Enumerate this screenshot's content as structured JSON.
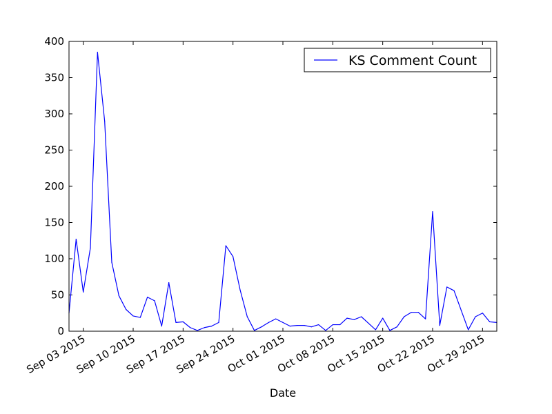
{
  "chart_data": {
    "type": "line",
    "title": "",
    "xlabel": "Date",
    "ylabel": "",
    "ylim": [
      0,
      400
    ],
    "xlim": [
      "2015-09-01",
      "2015-10-31"
    ],
    "yticks": [
      0,
      50,
      100,
      150,
      200,
      250,
      300,
      350,
      400
    ],
    "xticks": [
      {
        "date": "2015-09-03",
        "label": "Sep 03 2015"
      },
      {
        "date": "2015-09-10",
        "label": "Sep 10 2015"
      },
      {
        "date": "2015-09-17",
        "label": "Sep 17 2015"
      },
      {
        "date": "2015-09-24",
        "label": "Sep 24 2015"
      },
      {
        "date": "2015-10-01",
        "label": "Oct 01 2015"
      },
      {
        "date": "2015-10-08",
        "label": "Oct 08 2015"
      },
      {
        "date": "2015-10-15",
        "label": "Oct 15 2015"
      },
      {
        "date": "2015-10-22",
        "label": "Oct 22 2015"
      },
      {
        "date": "2015-10-29",
        "label": "Oct 29 2015"
      }
    ],
    "grid": false,
    "legend_position": "top-right",
    "series": [
      {
        "name": "KS Comment Count",
        "color": "#0000ff",
        "x": [
          "2015-09-01",
          "2015-09-02",
          "2015-09-03",
          "2015-09-04",
          "2015-09-05",
          "2015-09-06",
          "2015-09-07",
          "2015-09-08",
          "2015-09-09",
          "2015-09-10",
          "2015-09-11",
          "2015-09-12",
          "2015-09-13",
          "2015-09-14",
          "2015-09-15",
          "2015-09-16",
          "2015-09-17",
          "2015-09-18",
          "2015-09-19",
          "2015-09-20",
          "2015-09-21",
          "2015-09-22",
          "2015-09-23",
          "2015-09-24",
          "2015-09-25",
          "2015-09-26",
          "2015-09-27",
          "2015-09-28",
          "2015-09-29",
          "2015-09-30",
          "2015-10-01",
          "2015-10-02",
          "2015-10-03",
          "2015-10-04",
          "2015-10-05",
          "2015-10-06",
          "2015-10-07",
          "2015-10-08",
          "2015-10-09",
          "2015-10-10",
          "2015-10-11",
          "2015-10-12",
          "2015-10-13",
          "2015-10-14",
          "2015-10-15",
          "2015-10-16",
          "2015-10-17",
          "2015-10-18",
          "2015-10-19",
          "2015-10-20",
          "2015-10-21",
          "2015-10-22",
          "2015-10-23",
          "2015-10-24",
          "2015-10-25",
          "2015-10-26",
          "2015-10-27",
          "2015-10-28",
          "2015-10-29",
          "2015-10-30",
          "2015-10-31"
        ],
        "values": [
          25,
          127,
          54,
          115,
          385,
          290,
          95,
          49,
          30,
          21,
          19,
          47,
          42,
          7,
          67,
          12,
          13,
          5,
          1,
          5,
          7,
          12,
          118,
          103,
          57,
          20,
          1,
          6,
          12,
          17,
          12,
          7,
          8,
          8,
          6,
          9,
          1,
          9,
          9,
          18,
          16,
          20,
          11,
          2,
          18,
          1,
          6,
          20,
          26,
          26,
          17,
          165,
          8,
          61,
          56,
          29,
          2,
          20,
          25,
          13,
          12
        ]
      }
    ]
  }
}
